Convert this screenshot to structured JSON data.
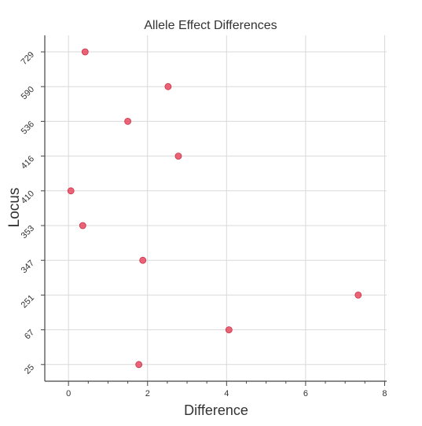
{
  "chart_data": {
    "type": "scatter",
    "title": "Allele Effect Differences",
    "xlabel": "Difference",
    "ylabel": "Locus",
    "categories": [
      "729",
      "590",
      "536",
      "416",
      "410",
      "353",
      "347",
      "251",
      "67",
      "25"
    ],
    "values": [
      0.42,
      2.52,
      1.5,
      2.78,
      0.06,
      0.36,
      1.88,
      7.33,
      4.06,
      1.78
    ],
    "x_ticks": [
      0,
      2,
      4,
      6,
      8
    ],
    "xlim": [
      -0.6,
      8.05
    ],
    "grid": true,
    "marker_color": "#e8495f",
    "grid_color": "#d9d9d9",
    "axis_color": "#444444"
  }
}
